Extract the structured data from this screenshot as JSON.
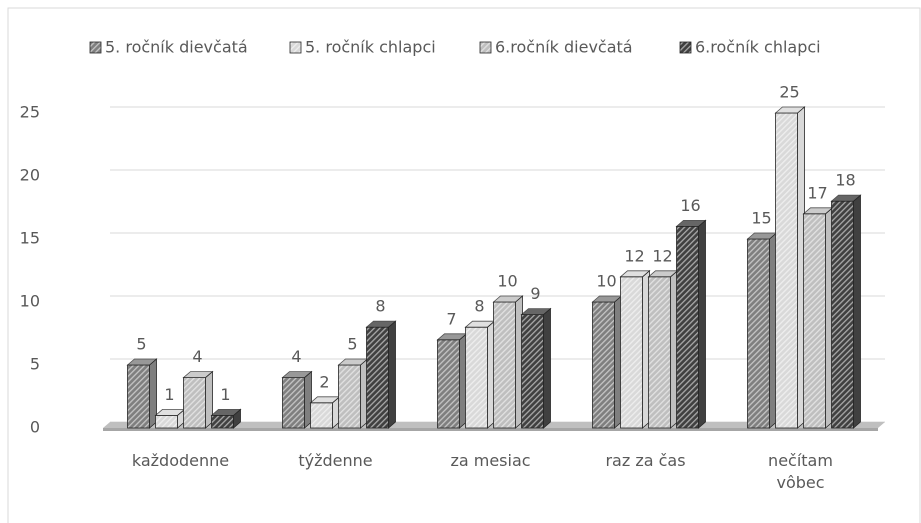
{
  "chart_data": {
    "type": "bar",
    "categories": [
      "každodenne",
      "týždenne",
      "za mesiac",
      "raz za čas",
      "nečítam vôbec"
    ],
    "series": [
      {
        "name": "5. ročník dievčatá",
        "color": "#7f7f7f",
        "values": [
          5,
          4,
          7,
          10,
          15
        ]
      },
      {
        "name": "5. ročník chlapci",
        "color": "#d9d9d9",
        "values": [
          1,
          2,
          8,
          12,
          25
        ]
      },
      {
        "name": "6.ročník dievčatá",
        "color": "#bfbfbf",
        "values": [
          4,
          5,
          10,
          12,
          17
        ]
      },
      {
        "name": "6.ročník chlapci",
        "color": "#404040",
        "values": [
          1,
          8,
          9,
          16,
          18
        ]
      }
    ],
    "ylim": [
      0,
      25
    ],
    "yticks": [
      0,
      5,
      10,
      15,
      20,
      25
    ],
    "grid": true,
    "legend": "top"
  }
}
